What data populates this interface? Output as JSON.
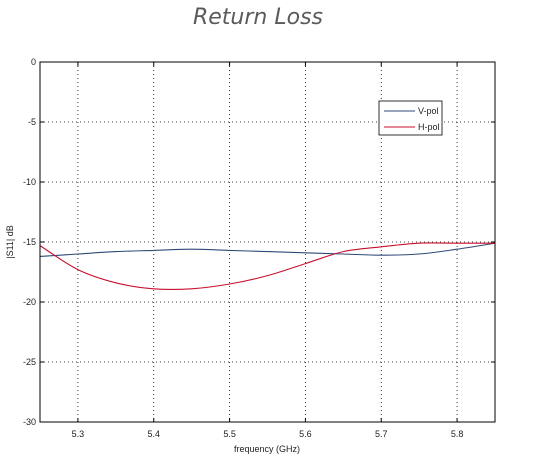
{
  "chart_data": {
    "type": "line",
    "title": "Return Loss",
    "xlabel": "frequency (GHz)",
    "ylabel": "|S11| dB",
    "xlim": [
      5.25,
      5.85
    ],
    "ylim": [
      -30,
      0
    ],
    "xticks": [
      5.3,
      5.4,
      5.5,
      5.6,
      5.7,
      5.8
    ],
    "xtick_labels": [
      "5.3",
      "5.4",
      "5.5",
      "5.6",
      "5.7",
      "5.8"
    ],
    "yticks": [
      0,
      -5,
      -10,
      -15,
      -20,
      -25,
      -30
    ],
    "ytick_labels": [
      "0",
      "-5",
      "-10",
      "-15",
      "-20",
      "-25",
      "-30"
    ],
    "grid": true,
    "legend_position": "top-right",
    "series": [
      {
        "name": "V-pol",
        "color": "#2f4a78",
        "x": [
          5.25,
          5.3,
          5.35,
          5.4,
          5.45,
          5.5,
          5.55,
          5.6,
          5.65,
          5.7,
          5.75,
          5.8,
          5.85
        ],
        "y": [
          -16.2,
          -16.0,
          -15.8,
          -15.7,
          -15.6,
          -15.7,
          -15.8,
          -15.9,
          -16.0,
          -16.1,
          -16.0,
          -15.6,
          -15.1
        ]
      },
      {
        "name": "H-pol",
        "color": "#c8102e",
        "x": [
          5.25,
          5.3,
          5.35,
          5.4,
          5.45,
          5.5,
          5.55,
          5.6,
          5.65,
          5.7,
          5.75,
          5.8,
          5.85
        ],
        "y": [
          -15.3,
          -17.3,
          -18.4,
          -18.9,
          -18.9,
          -18.5,
          -17.8,
          -16.8,
          -15.8,
          -15.4,
          -15.1,
          -15.1,
          -15.1
        ]
      }
    ]
  }
}
